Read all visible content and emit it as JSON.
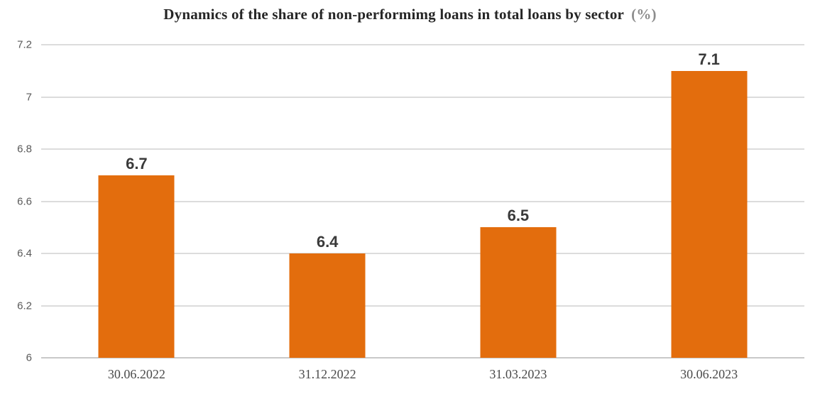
{
  "chart_data": {
    "type": "bar",
    "title": "Dynamics of the share of non-performimg loans in total loans by sector",
    "title_suffix": "(%)",
    "categories": [
      "30.06.2022",
      "31.12.2022",
      "31.03.2023",
      "30.06.2023"
    ],
    "values": [
      6.7,
      6.4,
      6.5,
      7.1
    ],
    "value_labels": [
      "6.7",
      "6.4",
      "6.5",
      "7.1"
    ],
    "xlabel": "",
    "ylabel": "",
    "ylim": [
      6,
      7.2
    ],
    "yticks": [
      6,
      6.2,
      6.4,
      6.6,
      6.8,
      7,
      7.2
    ],
    "ytick_labels": [
      "6",
      "6.2",
      "6.4",
      "6.6",
      "6.8",
      "7",
      "7.2"
    ],
    "grid": true,
    "legend_position": "none",
    "bar_color": "#e36d0d",
    "colors": {
      "bar": "#e36d0d",
      "gridline": "#dcdcdc",
      "axis_line": "#c9c9c9",
      "title_text": "#262626",
      "title_suffix": "#8c8c8c",
      "y_tick_text": "#595959",
      "x_tick_text": "#4a4a4a",
      "value_label_text": "#3a3a3a",
      "background": "#ffffff"
    }
  }
}
